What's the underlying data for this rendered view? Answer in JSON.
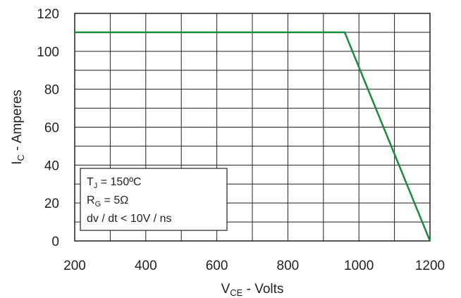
{
  "chart_data": {
    "type": "line",
    "xlabel": {
      "main": "V",
      "sub": "CE",
      "rest": " - Volts"
    },
    "ylabel": {
      "main": "I",
      "sub": "C",
      "rest": " - Amperes"
    },
    "xlim": [
      200,
      1200
    ],
    "ylim": [
      0,
      120
    ],
    "xticks": [
      200,
      400,
      600,
      800,
      1000,
      1200
    ],
    "yticks": [
      0,
      20,
      40,
      60,
      80,
      100,
      120
    ],
    "x_grid_step": 100,
    "y_grid_step": 10,
    "grid": true,
    "series": [
      {
        "color": "#1a8a3c",
        "x": [
          200,
          960,
          1200
        ],
        "y": [
          110,
          110,
          0
        ]
      }
    ],
    "annotation": {
      "placement": "bottom-left",
      "lines": [
        {
          "main": "T",
          "sub": "J",
          "rest": " = 150ºC"
        },
        {
          "main": "R",
          "sub": "G",
          "rest": " = 5Ω"
        },
        {
          "main": "dv / dt < 10V / ns",
          "sub": "",
          "rest": ""
        }
      ]
    }
  }
}
